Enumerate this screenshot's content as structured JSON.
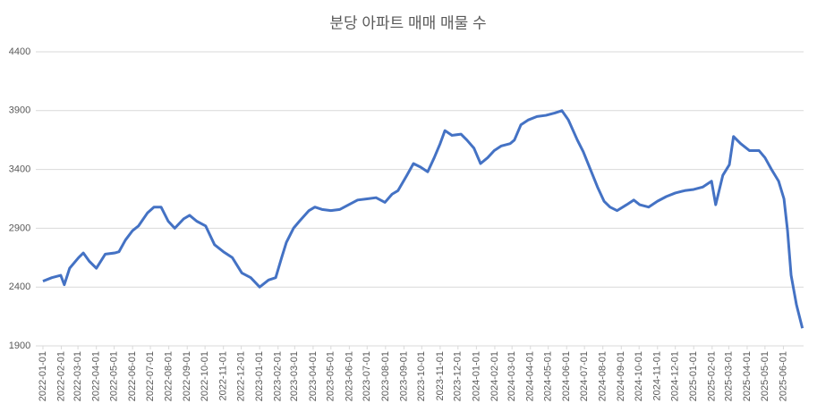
{
  "chart_data": {
    "type": "line",
    "title": "분당 아파트 매매 매물 수",
    "x": [
      "2022-01-01",
      "2022-01-16",
      "2022-01-31",
      "2022-02-06",
      "2022-02-15",
      "2022-03-02",
      "2022-03-10",
      "2022-03-20",
      "2022-04-01",
      "2022-04-16",
      "2022-05-02",
      "2022-05-09",
      "2022-05-20",
      "2022-06-01",
      "2022-06-11",
      "2022-06-26",
      "2022-07-07",
      "2022-07-19",
      "2022-07-31",
      "2022-08-11",
      "2022-08-26",
      "2022-09-05",
      "2022-09-17",
      "2022-10-02",
      "2022-10-17",
      "2022-11-01",
      "2022-11-16",
      "2022-12-02",
      "2022-12-17",
      "2023-01-01",
      "2023-01-16",
      "2023-01-28",
      "2023-02-07",
      "2023-02-15",
      "2023-02-27",
      "2023-03-09",
      "2023-03-25",
      "2023-04-04",
      "2023-04-16",
      "2023-05-01",
      "2023-05-16",
      "2023-05-31",
      "2023-06-15",
      "2023-07-01",
      "2023-07-16",
      "2023-07-31",
      "2023-08-12",
      "2023-08-22",
      "2023-09-06",
      "2023-09-17",
      "2023-09-29",
      "2023-10-11",
      "2023-10-22",
      "2023-11-01",
      "2023-11-09",
      "2023-11-21",
      "2023-12-06",
      "2023-12-16",
      "2023-12-28",
      "2024-01-08",
      "2024-01-20",
      "2024-01-31",
      "2024-02-12",
      "2024-02-27",
      "2024-03-05",
      "2024-03-16",
      "2024-03-28",
      "2024-04-12",
      "2024-04-27",
      "2024-05-12",
      "2024-05-24",
      "2024-06-04",
      "2024-06-19",
      "2024-06-29",
      "2024-07-11",
      "2024-07-23",
      "2024-08-03",
      "2024-08-13",
      "2024-08-25",
      "2024-09-10",
      "2024-09-22",
      "2024-10-02",
      "2024-10-17",
      "2024-11-01",
      "2024-11-16",
      "2024-12-01",
      "2024-12-17",
      "2025-01-01",
      "2025-01-16",
      "2025-01-31",
      "2025-02-07",
      "2025-02-19",
      "2025-03-02",
      "2025-03-09",
      "2025-03-21",
      "2025-04-05",
      "2025-04-21",
      "2025-05-01",
      "2025-05-12",
      "2025-05-24",
      "2025-06-02",
      "2025-06-08",
      "2025-06-14",
      "2025-06-23",
      "2025-07-03"
    ],
    "series": [
      {
        "color": "#4472c4",
        "values": [
          2450,
          2480,
          2500,
          2420,
          2560,
          2650,
          2690,
          2620,
          2560,
          2680,
          2690,
          2700,
          2800,
          2880,
          2920,
          3030,
          3080,
          3080,
          2960,
          2900,
          2980,
          3010,
          2960,
          2920,
          2760,
          2700,
          2650,
          2520,
          2480,
          2400,
          2460,
          2480,
          2650,
          2780,
          2900,
          2960,
          3050,
          3080,
          3060,
          3050,
          3060,
          3100,
          3140,
          3150,
          3160,
          3120,
          3190,
          3220,
          3350,
          3450,
          3420,
          3380,
          3500,
          3620,
          3730,
          3690,
          3700,
          3650,
          3580,
          3450,
          3500,
          3560,
          3600,
          3620,
          3650,
          3780,
          3820,
          3850,
          3860,
          3880,
          3900,
          3820,
          3650,
          3550,
          3400,
          3250,
          3130,
          3080,
          3050,
          3100,
          3140,
          3100,
          3080,
          3130,
          3170,
          3200,
          3220,
          3230,
          3250,
          3300,
          3100,
          3350,
          3440,
          3680,
          3620,
          3560,
          3560,
          3500,
          3400,
          3300,
          3150,
          2880,
          2500,
          2250,
          2050
        ]
      }
    ],
    "xlim": [
      "2021-12-20",
      "2025-07-05"
    ],
    "xticks": [
      "2022-01-01",
      "2022-02-01",
      "2022-03-01",
      "2022-04-01",
      "2022-05-01",
      "2022-06-01",
      "2022-07-01",
      "2022-08-01",
      "2022-09-01",
      "2022-10-01",
      "2022-11-01",
      "2022-12-01",
      "2023-01-01",
      "2023-02-01",
      "2023-03-01",
      "2023-04-01",
      "2023-05-01",
      "2023-06-01",
      "2023-07-01",
      "2023-08-01",
      "2023-09-01",
      "2023-10-01",
      "2023-11-01",
      "2023-12-01",
      "2024-01-01",
      "2024-02-01",
      "2024-03-01",
      "2024-04-01",
      "2024-05-01",
      "2024-06-01",
      "2024-07-01",
      "2024-08-01",
      "2024-09-01",
      "2024-10-01",
      "2024-11-01",
      "2024-12-01",
      "2025-01-01",
      "2025-02-01",
      "2025-03-01",
      "2025-04-01",
      "2025-05-01",
      "2025-06-01"
    ],
    "ylim": [
      1900,
      4400
    ],
    "yticks": [
      1900,
      2400,
      2900,
      3400,
      3900,
      4400
    ],
    "grid": true
  }
}
